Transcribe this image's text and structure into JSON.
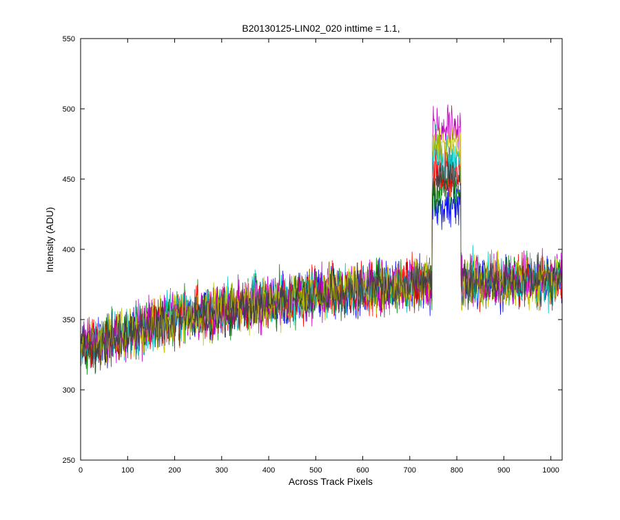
{
  "chart_data": {
    "type": "line",
    "title": "B20130125-LIN02_020 inttime = 1.1,",
    "xlabel": "Across Track Pixels",
    "ylabel": "Intensity (ADU)",
    "xlim": [
      0,
      1024
    ],
    "ylim": [
      250,
      550
    ],
    "xticks": [
      "0",
      "100",
      "200",
      "300",
      "400",
      "500",
      "600",
      "700",
      "800",
      "900",
      "1000"
    ],
    "yticks": [
      "250",
      "300",
      "350",
      "400",
      "450",
      "500",
      "550"
    ],
    "grid": false,
    "legend": "none",
    "series": [
      {
        "color": "#0000ff",
        "baseline": [
          [
            0,
            330
          ],
          [
            200,
            350
          ],
          [
            500,
            368
          ],
          [
            700,
            375
          ],
          [
            1024,
            378
          ]
        ],
        "peak": {
          "x": [
            748,
            808
          ],
          "value": 430
        },
        "noise": 18
      },
      {
        "color": "#008000",
        "baseline": [
          [
            0,
            331
          ],
          [
            200,
            351
          ],
          [
            500,
            369
          ],
          [
            700,
            376
          ],
          [
            1024,
            379
          ]
        ],
        "peak": {
          "x": [
            748,
            808
          ],
          "value": 440
        },
        "noise": 18
      },
      {
        "color": "#ff0000",
        "baseline": [
          [
            0,
            329
          ],
          [
            200,
            350
          ],
          [
            500,
            368
          ],
          [
            700,
            375
          ],
          [
            1024,
            378
          ]
        ],
        "peak": {
          "x": [
            748,
            808
          ],
          "value": 455
        },
        "noise": 18
      },
      {
        "color": "#00bfbf",
        "baseline": [
          [
            0,
            332
          ],
          [
            200,
            352
          ],
          [
            500,
            369
          ],
          [
            700,
            376
          ],
          [
            1024,
            379
          ]
        ],
        "peak": {
          "x": [
            748,
            808
          ],
          "value": 465
        },
        "noise": 18
      },
      {
        "color": "#bf00bf",
        "baseline": [
          [
            0,
            330
          ],
          [
            200,
            351
          ],
          [
            500,
            368
          ],
          [
            700,
            375
          ],
          [
            1024,
            378
          ]
        ],
        "peak": {
          "x": [
            748,
            808
          ],
          "value": 485
        },
        "noise": 18
      },
      {
        "color": "#bfbf00",
        "baseline": [
          [
            0,
            331
          ],
          [
            200,
            351
          ],
          [
            500,
            369
          ],
          [
            700,
            376
          ],
          [
            1024,
            379
          ]
        ],
        "peak": {
          "x": [
            748,
            808
          ],
          "value": 475
        },
        "noise": 18
      },
      {
        "color": "#404040",
        "baseline": [
          [
            0,
            330
          ],
          [
            200,
            350
          ],
          [
            500,
            368
          ],
          [
            700,
            375
          ],
          [
            1024,
            378
          ]
        ],
        "peak": {
          "x": [
            748,
            808
          ],
          "value": 450
        },
        "noise": 16
      }
    ]
  }
}
